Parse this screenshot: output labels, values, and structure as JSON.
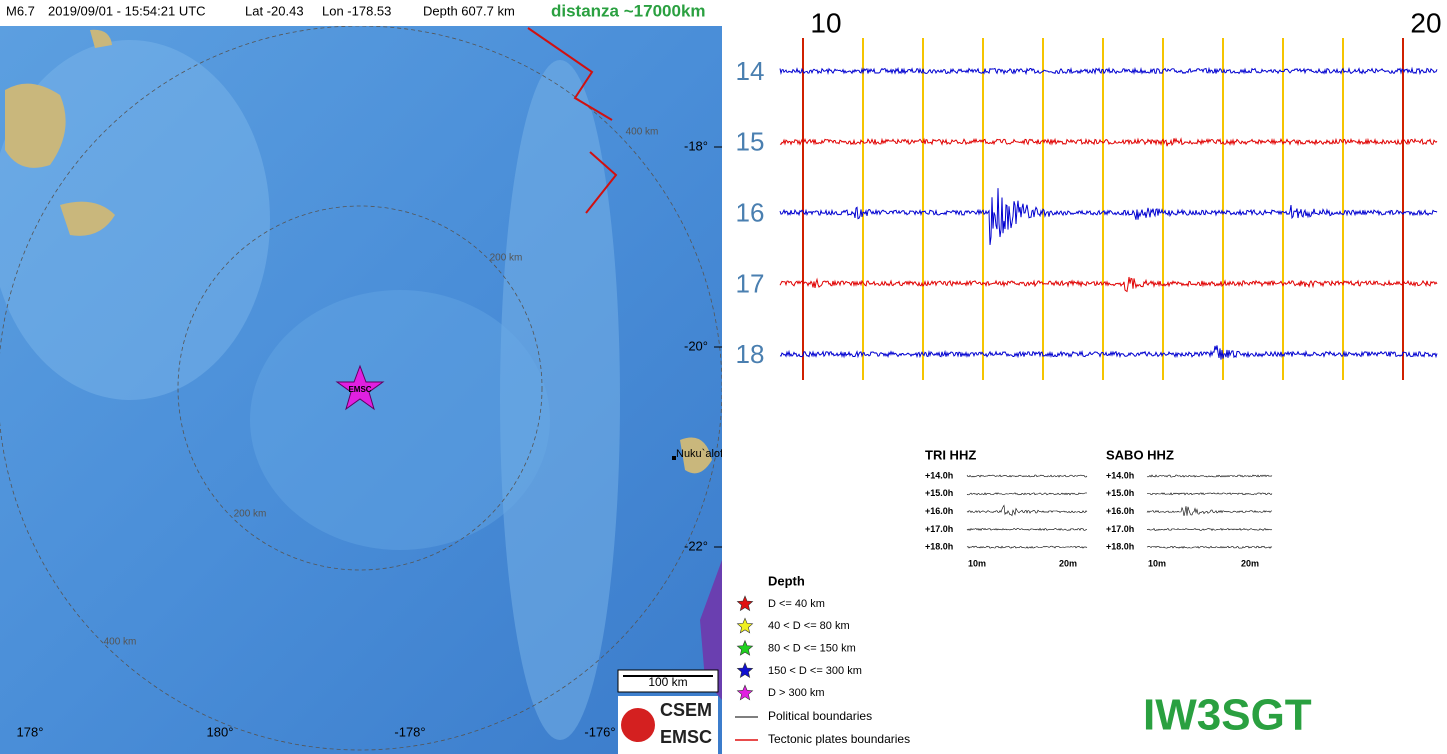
{
  "header": {
    "magnitude": "M6.7",
    "datetime": "2019/09/01 - 15:54:21 UTC",
    "lat": "Lat -20.43",
    "lon": "Lon -178.53",
    "depth": "Depth 607.7 km",
    "distance": "distanza ~17000km"
  },
  "map": {
    "lat_labels": [
      "-18°",
      "-20°",
      "-22°"
    ],
    "lon_labels": [
      "178°",
      "180°",
      "-178°",
      "-176°"
    ],
    "range_labels": [
      "400 km",
      "200 km",
      "200 km",
      "400 km"
    ],
    "place": "Nuku`alofa",
    "epicenter_label": "EMSC",
    "scale": "100 km",
    "logo": [
      "CSEM",
      "EMSC"
    ]
  },
  "legend": {
    "title": "Depth",
    "items": [
      "D <= 40 km",
      "40 < D <= 80 km",
      "80 < D <= 150 km",
      "150 < D <= 300 km",
      "D > 300 km"
    ],
    "lines": [
      "Political boundaries",
      "Tectonic plates boundaries"
    ]
  },
  "seismogram": {
    "time_labels": [
      "10",
      "20"
    ],
    "rows": [
      "14",
      "15",
      "16",
      "17",
      "18"
    ]
  },
  "helicorders": [
    {
      "title": "TRI HHZ",
      "rows": [
        "+14.0h",
        "+15.0h",
        "+16.0h",
        "+17.0h",
        "+18.0h"
      ],
      "time_labels": [
        "10m",
        "20m"
      ]
    },
    {
      "title": "SABO HHZ",
      "rows": [
        "+14.0h",
        "+15.0h",
        "+16.0h",
        "+17.0h",
        "+18.0h"
      ],
      "time_labels": [
        "10m",
        "20m"
      ]
    }
  ],
  "callsign": "IW3SGT"
}
